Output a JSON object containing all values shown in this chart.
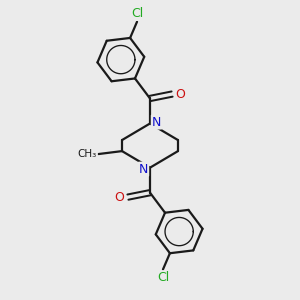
{
  "background_color": "#ebebeb",
  "bond_color": "#1a1a1a",
  "nitrogen_color": "#1111cc",
  "oxygen_color": "#cc1111",
  "chlorine_color": "#22aa22",
  "line_width": 1.6,
  "figsize": [
    3.0,
    3.0
  ],
  "dpi": 100,
  "xlim": [
    0,
    10
  ],
  "ylim": [
    0,
    10
  ]
}
